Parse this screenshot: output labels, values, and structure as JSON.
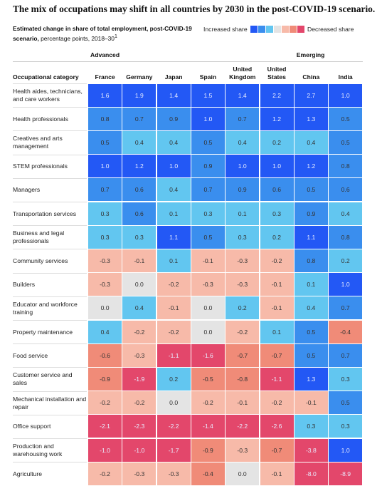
{
  "chart_data": {
    "type": "heatmap",
    "title": "The mix of occupations may shift in all countries by 2030 in the post-COVID-19 scenario.",
    "subtitle_bold": "Estimated change in share of total employment, post-COVID-19 scenario,",
    "subtitle": "percentage points, 2018–30",
    "footnote_mark": "1",
    "legend": {
      "increase": "Increased share",
      "decrease": "Decreased share",
      "colors": [
        "#2358f5",
        "#3a8eee",
        "#62c6f0",
        "#e4e4e4",
        "#f7baa9",
        "#f08b78",
        "#e3476b"
      ]
    },
    "row_header": "Occupational category",
    "groups": [
      {
        "name": "Advanced",
        "span": 6
      },
      {
        "name": "Emerging",
        "span": 2
      }
    ],
    "columns": [
      "France",
      "Germany",
      "Japan",
      "Spain",
      "United Kingdom",
      "United States",
      "China",
      "India"
    ],
    "rows": [
      {
        "name": "Health aides, technicians, and care workers",
        "values": [
          1.6,
          1.9,
          1.4,
          1.5,
          1.4,
          2.2,
          2.7,
          1.0
        ],
        "value_labels": [
          "1.6",
          "1.9",
          "1.4",
          "1.5",
          "1.4",
          "2.2",
          "2.7",
          "1.0"
        ],
        "colors": [
          "#2358f5",
          "#2358f5",
          "#2358f5",
          "#2358f5",
          "#2358f5",
          "#2358f5",
          "#2358f5",
          "#2358f5"
        ]
      },
      {
        "name": "Health professionals",
        "values": [
          0.8,
          0.7,
          0.9,
          1.0,
          0.7,
          1.2,
          1.3,
          0.5
        ],
        "value_labels": [
          "0.8",
          "0.7",
          "0.9",
          "1.0",
          "0.7",
          "1.2",
          "1.3",
          "0.5"
        ],
        "colors": [
          "#3a8eee",
          "#3a8eee",
          "#3a8eee",
          "#2358f5",
          "#3a8eee",
          "#2358f5",
          "#2358f5",
          "#3a8eee"
        ]
      },
      {
        "name": "Creatives and arts management",
        "values": [
          0.5,
          0.4,
          0.4,
          0.5,
          0.4,
          0.2,
          0.4,
          0.5
        ],
        "value_labels": [
          "0.5",
          "0.4",
          "0.4",
          "0.5",
          "0.4",
          "0.2",
          "0.4",
          "0.5"
        ],
        "colors": [
          "#3a8eee",
          "#62c6f0",
          "#62c6f0",
          "#3a8eee",
          "#62c6f0",
          "#62c6f0",
          "#62c6f0",
          "#3a8eee"
        ]
      },
      {
        "name": "STEM professionals",
        "values": [
          1.0,
          1.2,
          1.0,
          0.9,
          1.0,
          1.0,
          1.2,
          0.8
        ],
        "value_labels": [
          "1.0",
          "1.2",
          "1.0",
          "0.9",
          "1.0",
          "1.0",
          "1.2",
          "0.8"
        ],
        "colors": [
          "#2358f5",
          "#2358f5",
          "#2358f5",
          "#3a8eee",
          "#2358f5",
          "#2358f5",
          "#2358f5",
          "#3a8eee"
        ]
      },
      {
        "name": "Managers",
        "values": [
          0.7,
          0.6,
          0.4,
          0.7,
          0.9,
          0.6,
          0.5,
          0.6
        ],
        "value_labels": [
          "0.7",
          "0.6",
          "0.4",
          "0.7",
          "0.9",
          "0.6",
          "0.5",
          "0.6"
        ],
        "colors": [
          "#3a8eee",
          "#3a8eee",
          "#62c6f0",
          "#3a8eee",
          "#3a8eee",
          "#3a8eee",
          "#3a8eee",
          "#3a8eee"
        ]
      },
      {
        "name": "Transportation services",
        "values": [
          0.3,
          0.6,
          0.1,
          0.3,
          0.1,
          0.3,
          0.9,
          0.4
        ],
        "value_labels": [
          "0.3",
          "0.6",
          "0.1",
          "0.3",
          "0.1",
          "0.3",
          "0.9",
          "0.4"
        ],
        "colors": [
          "#62c6f0",
          "#3a8eee",
          "#62c6f0",
          "#62c6f0",
          "#62c6f0",
          "#62c6f0",
          "#3a8eee",
          "#62c6f0"
        ]
      },
      {
        "name": "Business and legal professionals",
        "values": [
          0.3,
          0.3,
          1.1,
          0.5,
          0.3,
          0.2,
          1.1,
          0.8
        ],
        "value_labels": [
          "0.3",
          "0.3",
          "1.1",
          "0.5",
          "0.3",
          "0.2",
          "1.1",
          "0.8"
        ],
        "colors": [
          "#62c6f0",
          "#62c6f0",
          "#2358f5",
          "#3a8eee",
          "#62c6f0",
          "#62c6f0",
          "#2358f5",
          "#3a8eee"
        ]
      },
      {
        "name": "Community services",
        "values": [
          -0.3,
          -0.1,
          0.1,
          -0.1,
          -0.3,
          -0.2,
          0.8,
          0.2
        ],
        "value_labels": [
          "-0.3",
          "-0.1",
          "0.1",
          "-0.1",
          "-0.3",
          "-0.2",
          "0.8",
          "0.2"
        ],
        "colors": [
          "#f7baa9",
          "#f7baa9",
          "#62c6f0",
          "#f7baa9",
          "#f7baa9",
          "#f7baa9",
          "#3a8eee",
          "#62c6f0"
        ]
      },
      {
        "name": "Builders",
        "values": [
          -0.3,
          0.0,
          -0.2,
          -0.3,
          -0.3,
          -0.1,
          0.1,
          1.0
        ],
        "value_labels": [
          "-0.3",
          "0.0",
          "-0.2",
          "-0.3",
          "-0.3",
          "-0.1",
          "0.1",
          "1.0"
        ],
        "colors": [
          "#f7baa9",
          "#e4e4e4",
          "#f7baa9",
          "#f7baa9",
          "#f7baa9",
          "#f7baa9",
          "#62c6f0",
          "#2358f5"
        ]
      },
      {
        "name": "Educator and workforce training",
        "values": [
          0.0,
          0.4,
          -0.1,
          0.0,
          0.2,
          -0.1,
          0.4,
          0.7
        ],
        "value_labels": [
          "0.0",
          "0.4",
          "-0.1",
          "0.0",
          "0.2",
          "-0.1",
          "0.4",
          "0.7"
        ],
        "colors": [
          "#e4e4e4",
          "#62c6f0",
          "#f7baa9",
          "#e4e4e4",
          "#62c6f0",
          "#f7baa9",
          "#62c6f0",
          "#3a8eee"
        ]
      },
      {
        "name": "Property maintenance",
        "values": [
          0.4,
          -0.2,
          -0.2,
          0.0,
          -0.2,
          0.1,
          0.5,
          -0.4
        ],
        "value_labels": [
          "0.4",
          "-0.2",
          "-0.2",
          "0.0",
          "-0.2",
          "0.1",
          "0.5",
          "-0.4"
        ],
        "colors": [
          "#62c6f0",
          "#f7baa9",
          "#f7baa9",
          "#e4e4e4",
          "#f7baa9",
          "#62c6f0",
          "#3a8eee",
          "#f08b78"
        ]
      },
      {
        "name": "Food service",
        "values": [
          -0.6,
          -0.3,
          -1.1,
          -1.6,
          -0.7,
          -0.7,
          0.5,
          0.7
        ],
        "value_labels": [
          "-0.6",
          "-0.3",
          "-1.1",
          "-1.6",
          "-0.7",
          "-0.7",
          "0.5",
          "0.7"
        ],
        "colors": [
          "#f08b78",
          "#f7baa9",
          "#e3476b",
          "#e3476b",
          "#f08b78",
          "#f08b78",
          "#3a8eee",
          "#3a8eee"
        ]
      },
      {
        "name": "Customer service and sales",
        "values": [
          -0.9,
          -1.9,
          0.2,
          -0.5,
          -0.8,
          -1.1,
          1.3,
          0.3
        ],
        "value_labels": [
          "-0.9",
          "-1.9",
          "0.2",
          "-0.5",
          "-0.8",
          "-1.1",
          "1.3",
          "0.3"
        ],
        "colors": [
          "#f08b78",
          "#e3476b",
          "#62c6f0",
          "#f08b78",
          "#f08b78",
          "#e3476b",
          "#2358f5",
          "#62c6f0"
        ]
      },
      {
        "name": "Mechanical installation and repair",
        "values": [
          -0.2,
          -0.2,
          0.0,
          -0.2,
          -0.1,
          -0.2,
          -0.1,
          0.5
        ],
        "value_labels": [
          "-0.2",
          "-0.2",
          "0.0",
          "-0.2",
          "-0.1",
          "-0.2",
          "-0.1",
          "0.5"
        ],
        "colors": [
          "#f7baa9",
          "#f7baa9",
          "#e4e4e4",
          "#f7baa9",
          "#f7baa9",
          "#f7baa9",
          "#f7baa9",
          "#3a8eee"
        ]
      },
      {
        "name": "Office support",
        "values": [
          -2.1,
          -2.3,
          -2.2,
          -1.4,
          -2.2,
          -2.6,
          0.3,
          0.3
        ],
        "value_labels": [
          "-2.1",
          "-2.3",
          "-2.2",
          "-1.4",
          "-2.2",
          "-2.6",
          "0.3",
          "0.3"
        ],
        "colors": [
          "#e3476b",
          "#e3476b",
          "#e3476b",
          "#e3476b",
          "#e3476b",
          "#e3476b",
          "#62c6f0",
          "#62c6f0"
        ]
      },
      {
        "name": "Production and warehousing work",
        "values": [
          -1.0,
          -1.0,
          -1.7,
          -0.9,
          -0.3,
          -0.7,
          -3.8,
          1.0
        ],
        "value_labels": [
          "-1.0",
          "-1.0",
          "-1.7",
          "-0.9",
          "-0.3",
          "-0.7",
          "-3.8",
          "1.0"
        ],
        "colors": [
          "#e3476b",
          "#e3476b",
          "#e3476b",
          "#f08b78",
          "#f7baa9",
          "#f08b78",
          "#e3476b",
          "#2358f5"
        ]
      },
      {
        "name": "Agriculture",
        "values": [
          -0.2,
          -0.3,
          -0.3,
          -0.4,
          0.0,
          -0.1,
          -8.0,
          -8.9
        ],
        "value_labels": [
          "-0.2",
          "-0.3",
          "-0.3",
          "-0.4",
          "0.0",
          "-0.1",
          "-8.0",
          "-8.9"
        ],
        "colors": [
          "#f7baa9",
          "#f7baa9",
          "#f7baa9",
          "#f08b78",
          "#e4e4e4",
          "#f7baa9",
          "#e3476b",
          "#e3476b"
        ]
      }
    ]
  }
}
